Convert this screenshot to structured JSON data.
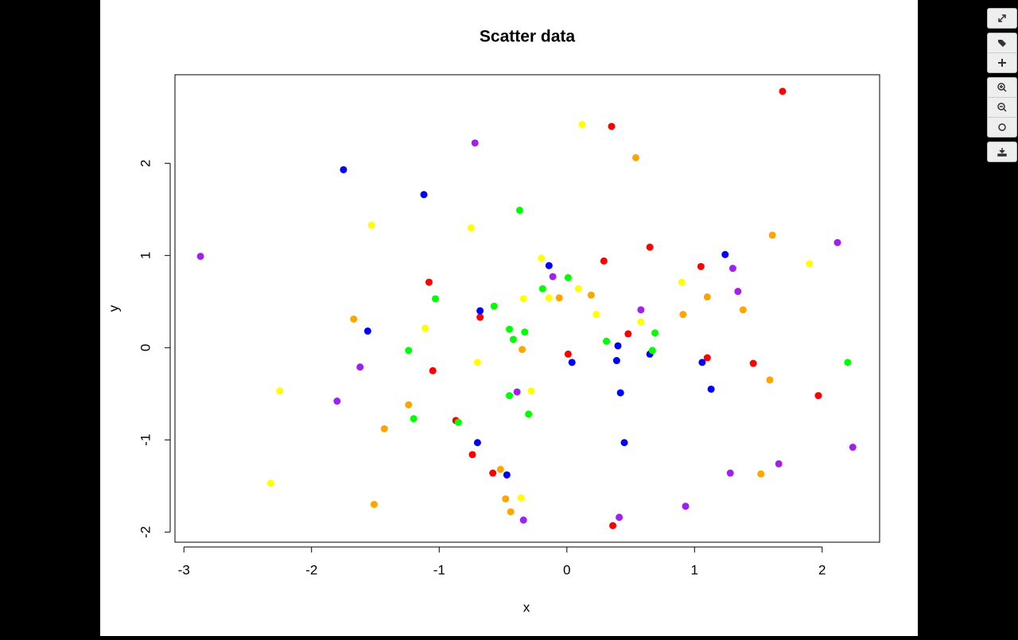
{
  "chart_data": {
    "type": "scatter",
    "title": "Scatter data",
    "x_label": "x",
    "y_label": "y",
    "xlim": [
      -3.07,
      2.45
    ],
    "ylim": [
      -2.11,
      2.96
    ],
    "xticks": [
      -3,
      -2,
      -1,
      0,
      1,
      2
    ],
    "yticks": [
      -2,
      -1,
      0,
      1,
      2
    ],
    "series": [
      {
        "color": "#ff0000",
        "x": [
          1.69,
          0.35,
          0.65,
          0.29,
          1.05,
          -1.08,
          -0.68,
          0.48,
          0.01,
          1.1,
          1.46,
          -1.05,
          1.97,
          -0.87,
          -0.74,
          -0.58,
          0.36
        ],
        "y": [
          2.78,
          2.4,
          1.09,
          0.94,
          0.88,
          0.71,
          0.33,
          0.15,
          -0.07,
          -0.11,
          -0.17,
          -0.25,
          -0.52,
          -0.79,
          -1.16,
          -1.36,
          -1.93
        ]
      },
      {
        "color": "#0000ff",
        "x": [
          -1.75,
          -1.12,
          1.24,
          -0.14,
          -0.68,
          -1.56,
          0.4,
          0.65,
          0.39,
          0.04,
          1.06,
          1.13,
          0.42,
          -0.7,
          0.45,
          -0.47
        ],
        "y": [
          1.93,
          1.66,
          1.01,
          0.89,
          0.4,
          0.18,
          0.02,
          -0.07,
          -0.14,
          -0.16,
          -0.16,
          -0.45,
          -0.49,
          -1.03,
          -1.03,
          -1.38
        ]
      },
      {
        "color": "#00ff00",
        "x": [
          -0.37,
          -0.19,
          0.01,
          -1.03,
          -0.57,
          -0.45,
          -0.33,
          -0.42,
          0.69,
          0.31,
          0.67,
          -1.24,
          2.2,
          -0.45,
          -0.3,
          -1.2,
          -0.85
        ],
        "y": [
          1.49,
          0.64,
          0.76,
          0.53,
          0.45,
          0.2,
          0.17,
          0.09,
          0.16,
          0.07,
          -0.03,
          -0.03,
          -0.16,
          -0.52,
          -0.72,
          -0.77,
          -0.81
        ]
      },
      {
        "color": "#ffff00",
        "x": [
          0.12,
          -1.53,
          -0.75,
          -0.2,
          1.9,
          0.09,
          0.9,
          -0.14,
          -0.34,
          0.23,
          0.58,
          -1.11,
          -0.7,
          -0.28,
          -2.25,
          -0.36,
          -2.32
        ],
        "y": [
          2.42,
          1.33,
          1.3,
          0.97,
          0.91,
          0.64,
          0.71,
          0.54,
          0.53,
          0.36,
          0.28,
          0.21,
          -0.16,
          -0.47,
          -0.47,
          -1.63,
          -1.47
        ]
      },
      {
        "color": "#ffa500",
        "x": [
          0.54,
          1.61,
          0.19,
          -0.06,
          1.1,
          1.38,
          0.91,
          -1.67,
          -0.35,
          1.59,
          -1.24,
          -1.43,
          -0.52,
          1.52,
          -0.48,
          -0.44,
          -1.51
        ],
        "y": [
          2.06,
          1.22,
          0.57,
          0.54,
          0.55,
          0.41,
          0.36,
          0.31,
          -0.02,
          -0.35,
          -0.62,
          -0.88,
          -1.32,
          -1.37,
          -1.64,
          -1.78,
          -1.7
        ]
      },
      {
        "color": "#a020f0",
        "x": [
          -0.72,
          -2.87,
          2.12,
          1.3,
          -0.11,
          1.34,
          0.58,
          -1.62,
          -1.8,
          -0.39,
          2.24,
          1.66,
          1.28,
          0.41,
          -0.34,
          0.93
        ],
        "y": [
          2.22,
          0.99,
          1.14,
          0.86,
          0.77,
          0.61,
          0.41,
          -0.21,
          -0.58,
          -0.48,
          -1.08,
          -1.26,
          -1.36,
          -1.84,
          -1.87,
          -1.72
        ]
      }
    ]
  }
}
